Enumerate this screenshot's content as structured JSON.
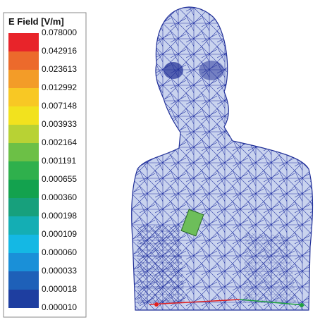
{
  "legend": {
    "title": "E Field [V/m]",
    "labels": [
      "0.078000",
      "0.042916",
      "0.023613",
      "0.012992",
      "0.007148",
      "0.003933",
      "0.002164",
      "0.001191",
      "0.000655",
      "0.000360",
      "0.000198",
      "0.000109",
      "0.000060",
      "0.000033",
      "0.000018",
      "0.000010"
    ],
    "colors": [
      "#e8242a",
      "#ec6a2c",
      "#f39c28",
      "#f8c824",
      "#f2e21e",
      "#b8d234",
      "#6cc046",
      "#2fb04c",
      "#13a24e",
      "#17a07c",
      "#14aeb4",
      "#14b8e4",
      "#1a90d8",
      "#1e60b8",
      "#1e3ea0"
    ]
  }
}
